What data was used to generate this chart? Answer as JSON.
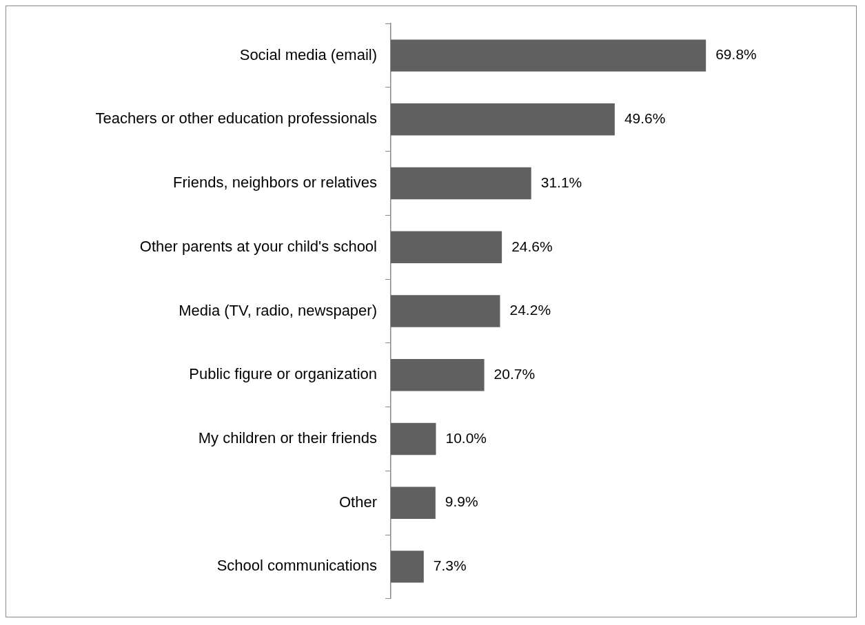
{
  "chart_data": {
    "type": "bar",
    "orientation": "horizontal",
    "categories": [
      "Social media (email)",
      "Teachers or other education professionals",
      "Friends, neighbors or relatives",
      "Other parents at your child's school",
      "Media (TV, radio, newspaper)",
      "Public figure or organization",
      "My children or their friends",
      "Other",
      "School communications"
    ],
    "values": [
      69.8,
      49.6,
      31.1,
      24.6,
      24.2,
      20.7,
      10.0,
      9.9,
      7.3
    ],
    "value_labels": [
      "69.8%",
      "49.6%",
      "31.1%",
      "24.6%",
      "24.2%",
      "20.7%",
      "10.0%",
      "9.9%",
      "7.3%"
    ],
    "color": "#606060",
    "legend": false,
    "tick_labels": "y"
  }
}
